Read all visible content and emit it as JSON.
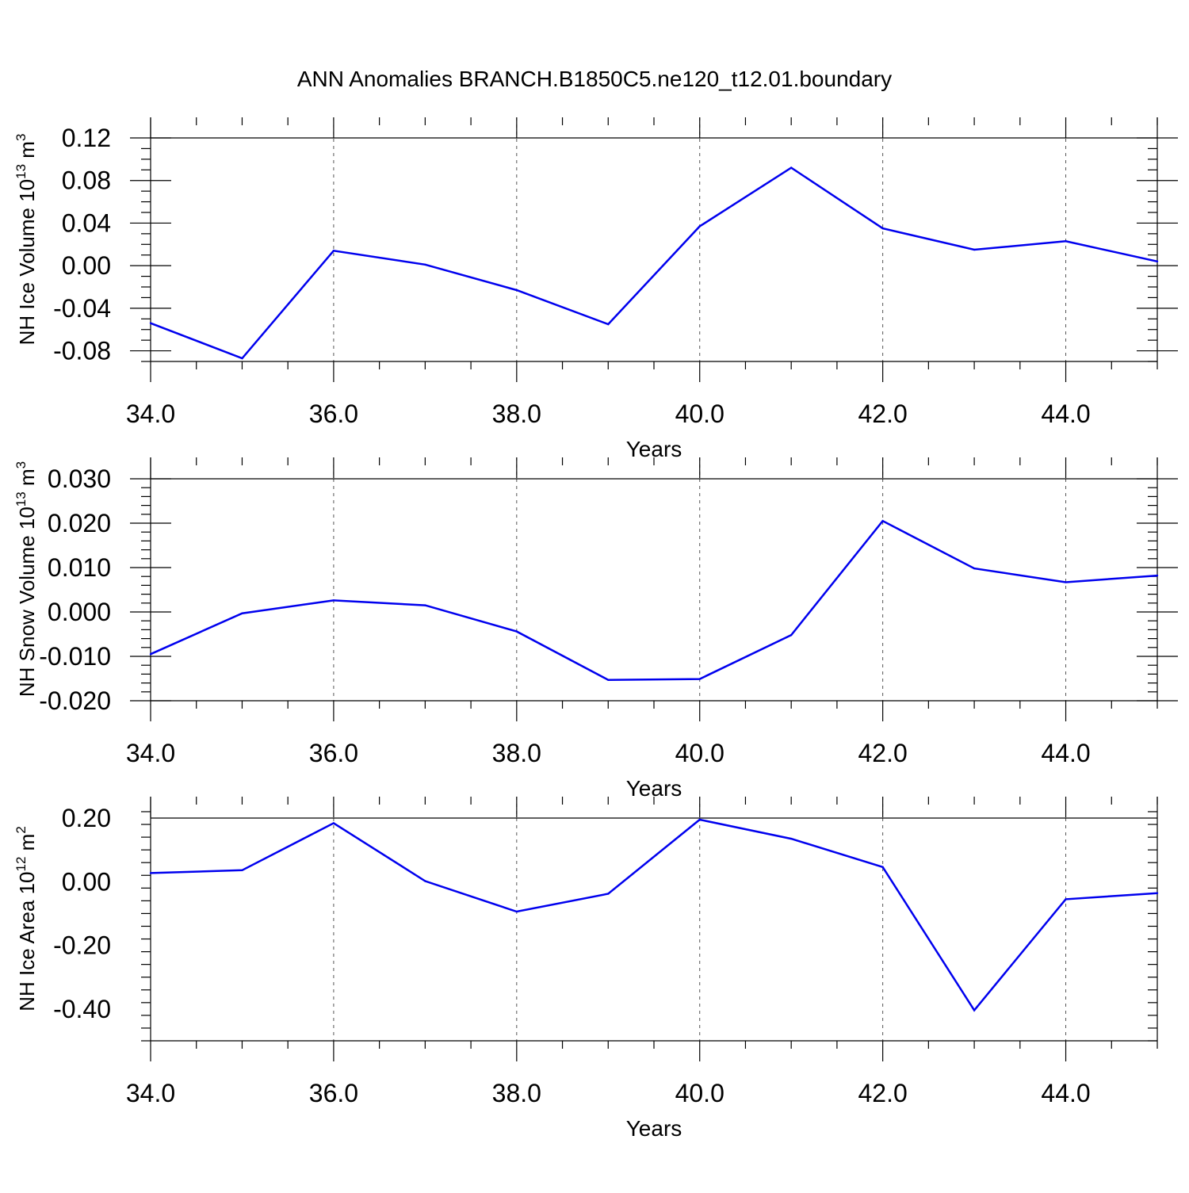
{
  "title": "ANN Anomalies BRANCH.B1850C5.ne120_t12.01.boundary",
  "colors": {
    "line": "#0000ee",
    "axis": "#000000",
    "grid": "#555555"
  },
  "chart_data": [
    {
      "type": "line",
      "xlabel": "Years",
      "ylabel_main": "NH Ice Volume 10",
      "ylabel_exp": "13",
      "ylabel_unit": " m",
      "ylabel_unit_exp": "3",
      "x": [
        34,
        35,
        36,
        37,
        38,
        39,
        40,
        41,
        42,
        43,
        44,
        45
      ],
      "series": [
        {
          "values": [
            -0.054,
            -0.087,
            0.014,
            0.001,
            -0.023,
            -0.055,
            0.037,
            0.092,
            0.035,
            0.015,
            0.023,
            0.004
          ]
        }
      ],
      "xlim": [
        34,
        45
      ],
      "ylim": [
        -0.09,
        0.12
      ],
      "xticks": [
        34,
        36,
        38,
        40,
        42,
        44
      ],
      "xtick_labels": [
        "34.0",
        "36.0",
        "38.0",
        "40.0",
        "42.0",
        "44.0"
      ],
      "yticks": [
        -0.08,
        -0.04,
        0.0,
        0.04,
        0.08,
        0.12
      ],
      "ytick_labels": [
        "-0.08",
        "-0.04",
        "0.00",
        "0.04",
        "0.08",
        "0.12"
      ],
      "y_minor_step": 0.01,
      "grid": "vertical dashed at major x ticks"
    },
    {
      "type": "line",
      "xlabel": "Years",
      "ylabel_main": "NH Snow Volume 10",
      "ylabel_exp": "13",
      "ylabel_unit": " m",
      "ylabel_unit_exp": "3",
      "x": [
        34,
        35,
        36,
        37,
        38,
        39,
        40,
        41,
        42,
        43,
        44,
        45
      ],
      "series": [
        {
          "values": [
            -0.0095,
            -0.0003,
            0.0026,
            0.0015,
            -0.0044,
            -0.0153,
            -0.0151,
            -0.0052,
            0.0205,
            0.0098,
            0.0067,
            0.0082
          ]
        }
      ],
      "xlim": [
        34,
        45
      ],
      "ylim": [
        -0.02,
        0.03
      ],
      "xticks": [
        34,
        36,
        38,
        40,
        42,
        44
      ],
      "xtick_labels": [
        "34.0",
        "36.0",
        "38.0",
        "40.0",
        "42.0",
        "44.0"
      ],
      "yticks": [
        -0.02,
        -0.01,
        0.0,
        0.01,
        0.02,
        0.03
      ],
      "ytick_labels": [
        "-0.020",
        "-0.010",
        "0.000",
        "0.010",
        "0.020",
        "0.030"
      ],
      "y_minor_step": 0.002,
      "grid": "vertical dashed at major x ticks"
    },
    {
      "type": "line",
      "xlabel": "Years",
      "ylabel_main": "NH Ice Area 10",
      "ylabel_exp": "12",
      "ylabel_unit": " m",
      "ylabel_unit_exp": "2",
      "x": [
        34,
        35,
        36,
        37,
        38,
        39,
        40,
        41,
        42,
        43,
        44,
        45
      ],
      "series": [
        {
          "values": [
            0.027,
            0.036,
            0.184,
            0.002,
            -0.094,
            -0.038,
            0.195,
            0.135,
            0.046,
            -0.404,
            -0.055,
            -0.036
          ]
        }
      ],
      "xlim": [
        34,
        45
      ],
      "ylim": [
        -0.5,
        0.2
      ],
      "xticks": [
        34,
        36,
        38,
        40,
        42,
        44
      ],
      "xtick_labels": [
        "34.0",
        "36.0",
        "38.0",
        "40.0",
        "42.0",
        "44.0"
      ],
      "yticks": [
        -0.4,
        -0.2,
        0.0,
        0.2
      ],
      "ytick_labels": [
        "-0.40",
        "-0.20",
        "0.00",
        "0.20"
      ],
      "y_minor_step": 0.04,
      "grid": "vertical dashed at major x ticks"
    }
  ]
}
